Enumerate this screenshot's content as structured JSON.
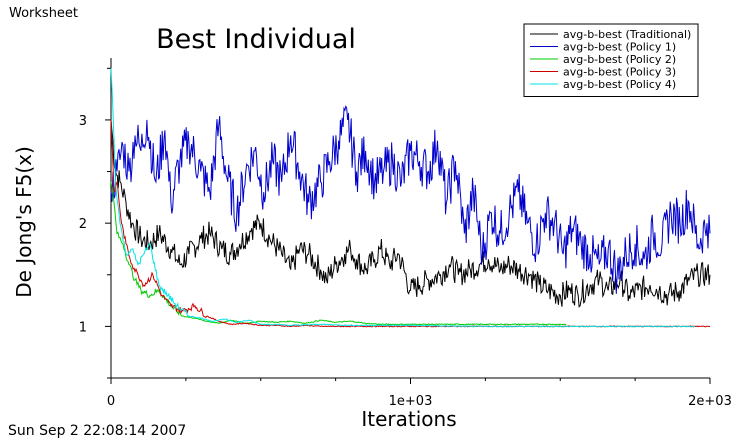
{
  "worksheet_label": "Worksheet",
  "timestamp": "Sun Sep 2 22:08:14 2007",
  "chart_data": {
    "type": "line",
    "title": "Best Individual",
    "xlabel": "Iterations",
    "ylabel": "De Jong's F5(x)",
    "xlim": [
      0,
      2000
    ],
    "ylim": [
      0.5,
      3.6
    ],
    "x_ticks": [
      {
        "value": 0,
        "label": "0"
      },
      {
        "value": 1000,
        "label": "1e+03"
      },
      {
        "value": 2000,
        "label": "2e+03"
      }
    ],
    "y_ticks": [
      {
        "value": 1,
        "label": "1"
      },
      {
        "value": 2,
        "label": "2"
      },
      {
        "value": 3,
        "label": "3"
      }
    ],
    "legend_position": "top-right",
    "series": [
      {
        "name": "avg-b-best (Traditional)",
        "color": "#000000",
        "x": [
          0,
          15,
          30,
          50,
          70,
          100,
          130,
          160,
          200,
          230,
          260,
          300,
          330,
          370,
          400,
          430,
          470,
          500,
          530,
          570,
          600,
          630,
          660,
          700,
          720,
          750,
          780,
          800,
          820,
          850,
          880,
          900,
          930,
          960,
          1000,
          1030,
          1060,
          1100,
          1130,
          1160,
          1200,
          1230,
          1260,
          1300,
          1330,
          1360,
          1400,
          1430,
          1460,
          1500,
          1530,
          1560,
          1600,
          1630,
          1660,
          1700,
          1730,
          1760,
          1800,
          1830,
          1860,
          1900,
          1930,
          1960,
          2000
        ],
        "y": [
          3.0,
          2.5,
          2.4,
          2.2,
          2.0,
          1.85,
          1.8,
          1.9,
          1.75,
          1.6,
          1.7,
          1.85,
          1.9,
          1.75,
          1.7,
          1.8,
          1.95,
          2.0,
          1.85,
          1.7,
          1.55,
          1.75,
          1.7,
          1.55,
          1.45,
          1.6,
          1.7,
          1.75,
          1.65,
          1.55,
          1.65,
          1.75,
          1.6,
          1.7,
          1.35,
          1.4,
          1.45,
          1.5,
          1.6,
          1.5,
          1.55,
          1.6,
          1.65,
          1.55,
          1.6,
          1.55,
          1.5,
          1.4,
          1.35,
          1.3,
          1.35,
          1.3,
          1.4,
          1.45,
          1.35,
          1.45,
          1.3,
          1.35,
          1.4,
          1.35,
          1.3,
          1.35,
          1.45,
          1.5,
          1.5
        ]
      },
      {
        "name": "avg-b-best (Policy 1)",
        "color": "#0000cc",
        "x": [
          0,
          20,
          40,
          60,
          80,
          100,
          120,
          150,
          180,
          200,
          230,
          260,
          300,
          330,
          360,
          390,
          420,
          450,
          480,
          510,
          540,
          570,
          600,
          630,
          660,
          700,
          730,
          760,
          790,
          820,
          850,
          880,
          910,
          940,
          970,
          1000,
          1030,
          1060,
          1090,
          1120,
          1150,
          1180,
          1210,
          1240,
          1270,
          1300,
          1330,
          1360,
          1390,
          1420,
          1450,
          1480,
          1510,
          1540,
          1570,
          1600,
          1630,
          1660,
          1690,
          1720,
          1750,
          1780,
          1810,
          1840,
          1870,
          1900,
          1930,
          1960,
          1990,
          2000
        ],
        "y": [
          2.3,
          2.5,
          2.75,
          2.5,
          2.85,
          2.7,
          3.0,
          2.4,
          2.9,
          2.2,
          2.6,
          2.8,
          2.5,
          2.3,
          2.95,
          2.4,
          2.1,
          2.5,
          2.7,
          2.3,
          2.6,
          2.4,
          2.85,
          2.5,
          2.2,
          2.4,
          2.6,
          2.8,
          3.0,
          2.5,
          2.7,
          2.4,
          2.5,
          2.6,
          2.4,
          2.7,
          2.6,
          2.5,
          2.8,
          2.2,
          2.6,
          1.9,
          2.3,
          1.7,
          2.1,
          1.9,
          2.1,
          2.3,
          2.0,
          1.8,
          2.1,
          2.0,
          1.7,
          1.95,
          1.8,
          1.7,
          1.6,
          1.75,
          1.5,
          1.7,
          1.8,
          1.65,
          1.9,
          1.8,
          2.1,
          2.0,
          2.2,
          1.8,
          2.0,
          1.9
        ]
      },
      {
        "name": "avg-b-best (Policy 2)",
        "color": "#00cc00",
        "x": [
          0,
          10,
          20,
          40,
          60,
          80,
          100,
          130,
          160,
          200,
          240,
          280,
          320,
          360,
          400,
          450,
          500,
          550,
          600,
          650,
          700,
          750,
          800,
          850,
          900,
          1000,
          1100,
          1200,
          1300,
          1400,
          1500,
          1520
        ],
        "y": [
          2.4,
          2.2,
          1.9,
          1.8,
          1.6,
          1.45,
          1.35,
          1.3,
          1.35,
          1.2,
          1.1,
          1.08,
          1.05,
          1.03,
          1.06,
          1.03,
          1.05,
          1.04,
          1.05,
          1.03,
          1.06,
          1.04,
          1.05,
          1.03,
          1.02,
          1.02,
          1.02,
          1.02,
          1.02,
          1.02,
          1.02,
          1.02
        ]
      },
      {
        "name": "avg-b-best (Policy 3)",
        "color": "#cc0000",
        "x": [
          0,
          10,
          20,
          35,
          50,
          70,
          90,
          110,
          140,
          170,
          200,
          240,
          280,
          320,
          360,
          400,
          450,
          500,
          550,
          600,
          650,
          700,
          800,
          900,
          1000,
          1100,
          1200,
          1300,
          1400,
          1500,
          1600,
          1700,
          1800,
          1900,
          2000
        ],
        "y": [
          3.0,
          2.3,
          2.4,
          2.0,
          1.8,
          1.6,
          1.5,
          1.4,
          1.5,
          1.3,
          1.2,
          1.15,
          1.2,
          1.1,
          1.05,
          1.02,
          1.03,
          1.01,
          1.01,
          1.0,
          1.01,
          1.0,
          1.0,
          1.0,
          1.0,
          1.0,
          1.0,
          1.0,
          1.0,
          1.0,
          1.0,
          1.0,
          1.0,
          1.0,
          1.0
        ]
      },
      {
        "name": "avg-b-best (Policy 4)",
        "color": "#00e5e5",
        "x": [
          0,
          5,
          15,
          30,
          50,
          70,
          90,
          110,
          130,
          160,
          190,
          220,
          260,
          300,
          340,
          380,
          420,
          460,
          500,
          550,
          600,
          700,
          800,
          900,
          1000,
          1200,
          1400,
          1600,
          1800,
          1900,
          1950
        ],
        "y": [
          3.5,
          3.2,
          2.4,
          2.0,
          1.7,
          1.75,
          1.6,
          1.7,
          1.8,
          1.4,
          1.3,
          1.2,
          1.1,
          1.08,
          1.05,
          1.07,
          1.04,
          1.06,
          1.02,
          1.02,
          1.01,
          1.02,
          1.01,
          1.01,
          1.01,
          1.0,
          1.0,
          1.0,
          1.0,
          1.0,
          1.0
        ]
      }
    ]
  }
}
